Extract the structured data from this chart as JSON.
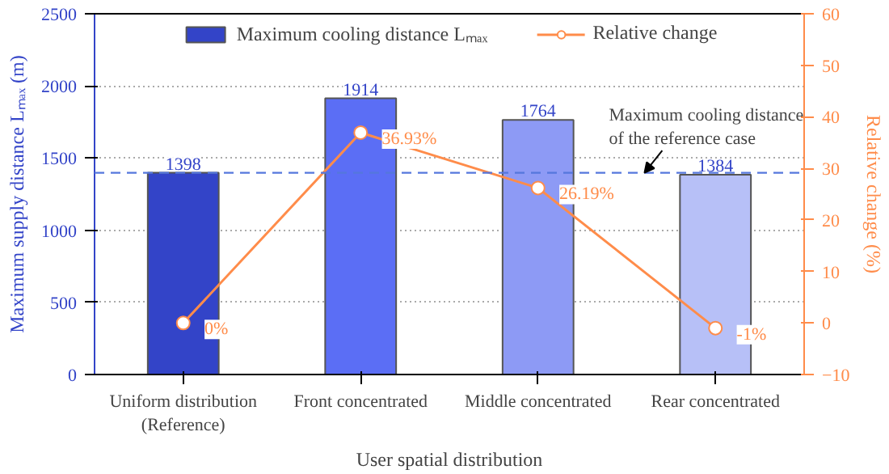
{
  "chart_data": {
    "type": "bar",
    "categories": [
      "Uniform distribution\n(Reference)",
      "Front concentrated",
      "Middle concentrated",
      "Rear concentrated"
    ],
    "xlabel": "User spatial distribution",
    "ylabel": "Maximum supply distance Lₘₐₓ (m)",
    "y2label": "Relative change (%)",
    "series": [
      {
        "name": "Maximum cooling distance Lₘₐₓ",
        "colors": [
          "#3344c8",
          "#5b6ef5",
          "#8d9af5",
          "#b7c0f7"
        ],
        "color": "#3344c8",
        "values": [
          1398,
          1914,
          1764,
          1384
        ],
        "value_labels": [
          "1398",
          "1914",
          "1764",
          "1384"
        ]
      },
      {
        "name": "Relative change",
        "type": "line",
        "axis": "y2",
        "color": "#ff8c4a",
        "marker": "circle",
        "values": [
          0,
          36.93,
          26.19,
          -1
        ],
        "value_labels": [
          "0%",
          "36.93%",
          "26.19%",
          "-1%"
        ]
      }
    ],
    "ylim": [
      0,
      2500
    ],
    "yticks": [
      0,
      500,
      1000,
      1500,
      2000,
      2500
    ],
    "y2lim": [
      -10,
      60
    ],
    "y2ticks": [
      -10,
      0,
      10,
      20,
      30,
      40,
      50,
      60
    ],
    "ref_lines": [
      {
        "axis": "y",
        "value": 1398,
        "label": "Maximum cooling distance\nof the reference case",
        "color": "#5577dd",
        "line_style": "dashed"
      }
    ],
    "grid": "y",
    "legend": "top"
  }
}
